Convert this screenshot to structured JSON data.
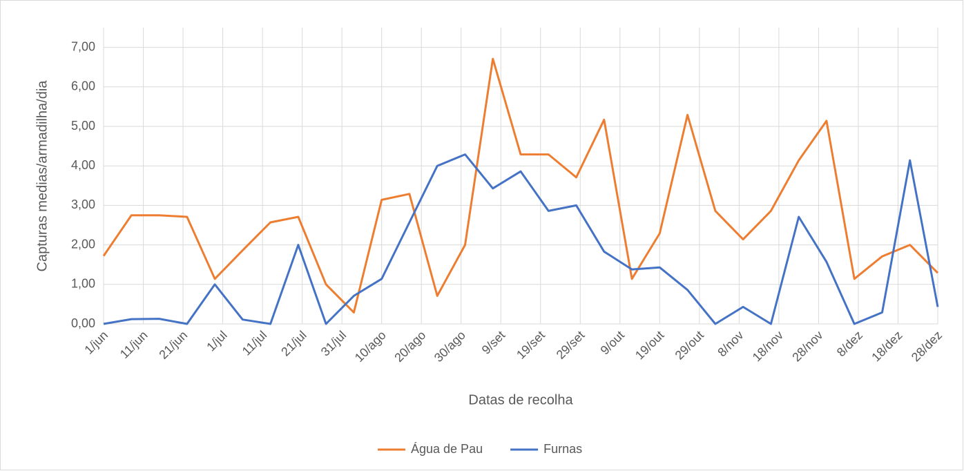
{
  "chart_data": {
    "type": "line",
    "x_label": "Datas de recolha",
    "y_label": "Capturas medias/armadilha/dia",
    "x": [
      "1/jun",
      "8/jun",
      "15/jun",
      "22/jun",
      "29/jun",
      "6/jul",
      "13/jul",
      "20/jul",
      "27/jul",
      "3/ago",
      "10/ago",
      "17/ago",
      "24/ago",
      "31/ago",
      "7/set",
      "14/set",
      "21/set",
      "28/set",
      "5/out",
      "12/out",
      "19/out",
      "26/out",
      "2/nov",
      "9/nov",
      "16/nov",
      "23/nov",
      "30/nov",
      "7/dez",
      "14/dez",
      "21/dez",
      "28/dez"
    ],
    "series": [
      {
        "name": "Água de Pau",
        "color": "#ed7d31",
        "values": [
          1.72,
          2.75,
          2.75,
          2.71,
          1.14,
          1.86,
          2.57,
          2.71,
          1.0,
          0.29,
          3.14,
          3.29,
          0.71,
          2.0,
          6.71,
          4.29,
          4.29,
          3.71,
          5.17,
          1.14,
          2.29,
          5.29,
          2.86,
          2.14,
          2.86,
          4.14,
          5.14,
          1.14,
          1.71,
          2.0,
          1.29
        ]
      },
      {
        "name": "Furnas",
        "color": "#4472c4",
        "values": [
          0,
          0.12,
          0.13,
          0,
          1.0,
          0.11,
          0,
          2.0,
          0,
          0.71,
          1.14,
          2.57,
          4.0,
          4.29,
          3.43,
          3.86,
          2.86,
          3.0,
          1.83,
          1.38,
          1.43,
          0.86,
          0,
          0.43,
          0,
          2.71,
          1.57,
          0,
          0.29,
          4.14,
          0.43
        ]
      }
    ],
    "xlim": [
      "1/jun",
      "28/dez"
    ],
    "xticks": [
      "1/jun",
      "11/jun",
      "21/jun",
      "1/jul",
      "11/jul",
      "21/jul",
      "31/jul",
      "10/ago",
      "20/ago",
      "30/ago",
      "9/set",
      "19/set",
      "29/set",
      "9/out",
      "19/out",
      "29/out",
      "8/nov",
      "18/nov",
      "28/nov",
      "8/dez",
      "18/dez",
      "28/dez"
    ],
    "ylim": [
      0,
      7.5
    ],
    "yticks": [
      {
        "value": 0,
        "label": "0,00"
      },
      {
        "value": 1,
        "label": "1,00"
      },
      {
        "value": 2,
        "label": "2,00"
      },
      {
        "value": 3,
        "label": "3,00"
      },
      {
        "value": 4,
        "label": "4,00"
      },
      {
        "value": 5,
        "label": "5,00"
      },
      {
        "value": 6,
        "label": "6,00"
      },
      {
        "value": 7,
        "label": "7,00"
      }
    ],
    "grid": true,
    "legend": "bottom"
  }
}
